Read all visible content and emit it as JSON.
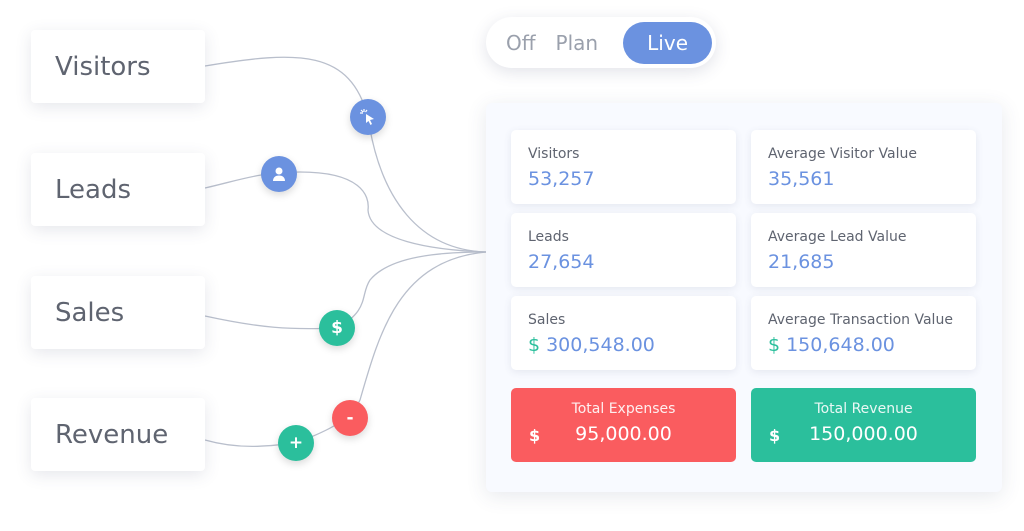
{
  "sources": [
    "Visitors",
    "Leads",
    "Sales",
    "Revenue"
  ],
  "toggle": {
    "options": [
      "Off",
      "Plan",
      "Live"
    ],
    "selected": "Live"
  },
  "nodes": {
    "cursor": "cursor-click-icon",
    "user": "user-icon",
    "dollar": "$",
    "minus": "-",
    "plus": "+"
  },
  "stats": [
    {
      "label": "Visitors",
      "value": "53,257"
    },
    {
      "label": "Average Visitor Value",
      "value": "35,561"
    },
    {
      "label": "Leads",
      "value": "27,654"
    },
    {
      "label": "Average Lead Value",
      "value": "21,685"
    },
    {
      "label": "Sales",
      "currency": "$",
      "value": "300,548.00"
    },
    {
      "label": "Average Transaction Value",
      "currency": "$",
      "value": "150,648.00"
    }
  ],
  "totals": {
    "expenses": {
      "label": "Total Expenses",
      "currency": "$",
      "value": "95,000.00"
    },
    "revenue": {
      "label": "Total Revenue",
      "currency": "$",
      "value": "150,000.00"
    }
  },
  "colors": {
    "blue": "#6b92e0",
    "green": "#2bbf9c",
    "red": "#fa5c5f"
  }
}
